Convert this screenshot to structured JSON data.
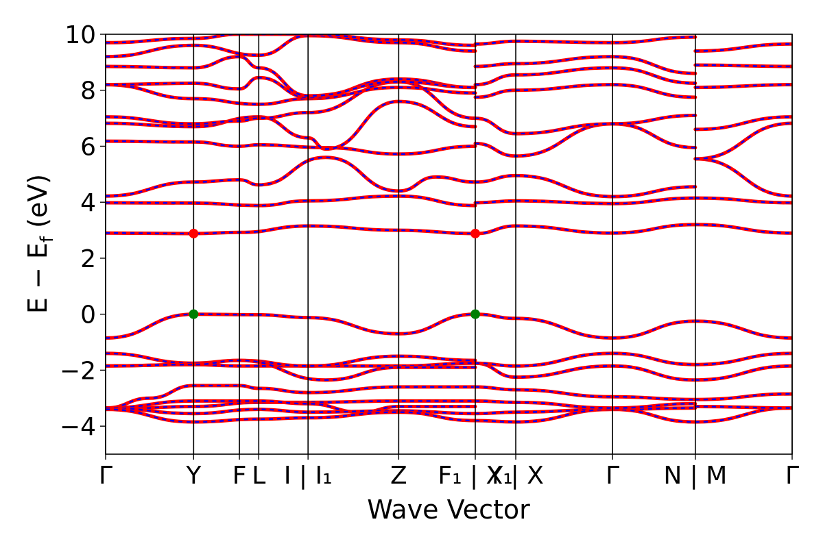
{
  "chart_data": {
    "type": "line",
    "title": "",
    "xlabel": "Wave Vector",
    "ylabel": "E − E_f (eV)",
    "ylabel_parts": {
      "main": "E − E",
      "sub": "f",
      "unit": " (eV)"
    },
    "ylim": [
      -5,
      10
    ],
    "y_ticks": [
      -4,
      -2,
      0,
      2,
      4,
      6,
      8,
      10
    ],
    "y_tick_labels": [
      "−4",
      "−2",
      "0",
      "2",
      "4",
      "6",
      "8",
      "10"
    ],
    "kpath": [
      {
        "label": "Γ",
        "x": 0.0
      },
      {
        "label": "Y",
        "x": 1.0
      },
      {
        "label": "F",
        "x": 1.52
      },
      {
        "label": "L",
        "x": 1.74
      },
      {
        "label": "I | I₁",
        "x": 2.3
      },
      {
        "label": "Z",
        "x": 3.33
      },
      {
        "label": "F₁ | X₁",
        "x": 4.2
      },
      {
        "label": "Y | X",
        "x": 4.66
      },
      {
        "label": "Γ",
        "x": 5.76
      },
      {
        "label": "N | M",
        "x": 6.7
      },
      {
        "label": "Γ",
        "x": 7.8
      }
    ],
    "path_breaks": [
      4.2,
      6.7
    ],
    "series_styles": [
      {
        "color": "#ff0000",
        "style": "solid"
      },
      {
        "color": "#0000ff",
        "style": "dashed"
      }
    ],
    "vbm": {
      "energy": 0.0,
      "x": [
        1.0,
        4.2
      ],
      "color": "#007f00"
    },
    "cbm": {
      "energy": 2.88,
      "x": [
        1.0,
        4.2
      ],
      "color": "#ff0000"
    },
    "bands": [
      [
        [
          0,
          -3.35
        ],
        [
          0.5,
          -3.0
        ],
        [
          1.0,
          -2.55
        ],
        [
          1.52,
          -2.55
        ],
        [
          1.74,
          -2.65
        ],
        [
          2.3,
          -2.8
        ],
        [
          3.33,
          -2.6
        ],
        [
          4.2,
          -2.6
        ]
      ],
      [
        [
          0,
          -3.4
        ],
        [
          1.0,
          -3.3
        ],
        [
          1.74,
          -3.15
        ],
        [
          2.3,
          -3.15
        ],
        [
          3.33,
          -3.1
        ],
        [
          4.2,
          -3.1
        ]
      ],
      [
        [
          0,
          -3.35
        ],
        [
          1.0,
          -3.1
        ],
        [
          1.74,
          -3.1
        ],
        [
          2.3,
          -3.2
        ],
        [
          2.9,
          -3.5
        ],
        [
          3.33,
          -3.3
        ],
        [
          4.2,
          -3.3
        ]
      ],
      [
        [
          0,
          -3.35
        ],
        [
          1.0,
          -3.55
        ],
        [
          1.74,
          -3.4
        ],
        [
          2.3,
          -3.5
        ],
        [
          3.33,
          -3.45
        ],
        [
          4.2,
          -3.55
        ]
      ],
      [
        [
          0,
          -3.4
        ],
        [
          1.0,
          -3.85
        ],
        [
          1.74,
          -3.75
        ],
        [
          2.3,
          -3.7
        ],
        [
          3.33,
          -3.5
        ],
        [
          4.2,
          -3.8
        ]
      ],
      [
        [
          0,
          -1.85
        ],
        [
          1.0,
          -1.8
        ],
        [
          1.52,
          -1.85
        ],
        [
          2.3,
          -1.85
        ],
        [
          3.33,
          -1.85
        ],
        [
          4.2,
          -1.75
        ]
      ],
      [
        [
          0,
          -1.4
        ],
        [
          1.0,
          -1.75
        ],
        [
          1.52,
          -1.65
        ],
        [
          2.3,
          -1.85
        ],
        [
          3.33,
          -1.5
        ],
        [
          4.2,
          -1.65
        ]
      ],
      [
        [
          0,
          -1.85
        ],
        [
          1.0,
          -1.8
        ],
        [
          1.52,
          -1.65
        ],
        [
          2.5,
          -2.35
        ],
        [
          3.33,
          -1.9
        ],
        [
          4.2,
          -1.9
        ]
      ],
      [
        [
          0,
          -0.85
        ],
        [
          1.0,
          0.0
        ],
        [
          1.74,
          -0.02
        ],
        [
          2.3,
          -0.12
        ],
        [
          3.33,
          -0.7
        ],
        [
          4.2,
          0.0
        ]
      ],
      [
        [
          0,
          2.9
        ],
        [
          1.0,
          2.88
        ],
        [
          1.52,
          2.92
        ],
        [
          2.3,
          3.15
        ],
        [
          3.33,
          3.0
        ],
        [
          4.2,
          2.88
        ]
      ],
      [
        [
          0,
          3.98
        ],
        [
          1.0,
          3.97
        ],
        [
          1.74,
          3.88
        ],
        [
          2.3,
          4.05
        ],
        [
          3.33,
          4.22
        ],
        [
          4.2,
          3.88
        ]
      ],
      [
        [
          0,
          4.22
        ],
        [
          1.0,
          4.72
        ],
        [
          1.52,
          4.8
        ],
        [
          1.74,
          4.62
        ],
        [
          2.5,
          5.6
        ],
        [
          3.33,
          4.4
        ],
        [
          3.75,
          4.9
        ],
        [
          4.2,
          4.72
        ]
      ],
      [
        [
          0,
          6.18
        ],
        [
          1.0,
          6.15
        ],
        [
          1.52,
          6.0
        ],
        [
          1.74,
          6.05
        ],
        [
          2.5,
          5.95
        ],
        [
          3.33,
          5.72
        ],
        [
          4.2,
          6.0
        ]
      ],
      [
        [
          0,
          6.82
        ],
        [
          1.0,
          6.7
        ],
        [
          1.74,
          7.05
        ],
        [
          2.3,
          6.3
        ],
        [
          2.5,
          5.9
        ],
        [
          3.33,
          7.6
        ],
        [
          4.2,
          6.7
        ]
      ],
      [
        [
          0,
          7.05
        ],
        [
          1.0,
          6.8
        ],
        [
          1.52,
          6.9
        ],
        [
          1.74,
          7.0
        ],
        [
          2.3,
          7.2
        ],
        [
          3.33,
          8.3
        ],
        [
          4.2,
          7.0
        ]
      ],
      [
        [
          0,
          8.2
        ],
        [
          1.0,
          7.7
        ],
        [
          1.74,
          7.5
        ],
        [
          2.3,
          7.7
        ],
        [
          3.33,
          8.1
        ],
        [
          4.2,
          7.9
        ]
      ],
      [
        [
          0,
          8.2
        ],
        [
          1.0,
          8.25
        ],
        [
          1.52,
          8.05
        ],
        [
          1.74,
          8.45
        ],
        [
          2.3,
          7.75
        ],
        [
          3.33,
          8.4
        ],
        [
          4.2,
          8.1
        ]
      ],
      [
        [
          0,
          8.85
        ],
        [
          1.0,
          8.8
        ],
        [
          1.52,
          9.2
        ],
        [
          1.74,
          8.8
        ],
        [
          2.3,
          7.8
        ],
        [
          3.33,
          8.3
        ],
        [
          4.2,
          8.1
        ]
      ],
      [
        [
          0,
          9.2
        ],
        [
          1.0,
          9.6
        ],
        [
          1.74,
          9.25
        ],
        [
          2.3,
          9.95
        ],
        [
          3.33,
          9.7
        ],
        [
          4.2,
          9.4
        ]
      ],
      [
        [
          0,
          9.7
        ],
        [
          1.0,
          9.85
        ],
        [
          1.52,
          10.0
        ],
        [
          2.3,
          10.0
        ],
        [
          3.33,
          9.8
        ],
        [
          4.2,
          9.6
        ]
      ],
      [
        [
          4.2,
          -3.55
        ],
        [
          4.66,
          -3.5
        ],
        [
          5.76,
          -3.4
        ],
        [
          6.7,
          -3.35
        ]
      ],
      [
        [
          4.2,
          -3.8
        ],
        [
          4.66,
          -3.85
        ],
        [
          5.76,
          -3.4
        ],
        [
          6.7,
          -3.85
        ]
      ],
      [
        [
          4.2,
          -3.1
        ],
        [
          4.66,
          -3.15
        ],
        [
          5.76,
          -3.35
        ],
        [
          6.7,
          -3.2
        ]
      ],
      [
        [
          4.2,
          -2.6
        ],
        [
          4.66,
          -2.7
        ],
        [
          5.76,
          -2.95
        ],
        [
          6.7,
          -3.05
        ]
      ],
      [
        [
          4.2,
          -1.75
        ],
        [
          4.66,
          -2.25
        ],
        [
          5.76,
          -1.85
        ],
        [
          6.7,
          -2.35
        ]
      ],
      [
        [
          4.2,
          -1.75
        ],
        [
          4.66,
          -1.85
        ],
        [
          5.76,
          -1.4
        ],
        [
          6.7,
          -1.8
        ]
      ],
      [
        [
          4.2,
          0.0
        ],
        [
          4.66,
          -0.15
        ],
        [
          5.76,
          -0.85
        ],
        [
          6.7,
          -0.25
        ]
      ],
      [
        [
          4.2,
          2.88
        ],
        [
          4.66,
          3.15
        ],
        [
          5.76,
          2.9
        ],
        [
          6.7,
          3.2
        ]
      ],
      [
        [
          4.2,
          3.98
        ],
        [
          4.66,
          4.05
        ],
        [
          5.76,
          3.95
        ],
        [
          6.7,
          4.15
        ]
      ],
      [
        [
          4.2,
          4.72
        ],
        [
          4.66,
          4.95
        ],
        [
          5.76,
          4.2
        ],
        [
          6.7,
          4.55
        ]
      ],
      [
        [
          4.2,
          6.1
        ],
        [
          4.66,
          5.65
        ],
        [
          5.76,
          6.8
        ],
        [
          6.7,
          5.95
        ]
      ],
      [
        [
          4.2,
          7.0
        ],
        [
          4.66,
          6.45
        ],
        [
          5.76,
          6.8
        ],
        [
          6.7,
          7.1
        ]
      ],
      [
        [
          4.2,
          7.75
        ],
        [
          4.66,
          8.0
        ],
        [
          5.76,
          8.2
        ],
        [
          6.7,
          7.75
        ]
      ],
      [
        [
          4.2,
          8.2
        ],
        [
          4.66,
          8.55
        ],
        [
          5.76,
          8.8
        ],
        [
          6.7,
          8.25
        ]
      ],
      [
        [
          4.2,
          8.85
        ],
        [
          4.66,
          8.95
        ],
        [
          5.76,
          9.2
        ],
        [
          6.7,
          8.6
        ]
      ],
      [
        [
          4.2,
          9.65
        ],
        [
          4.66,
          9.75
        ],
        [
          5.76,
          9.7
        ],
        [
          6.7,
          9.9
        ]
      ],
      [
        [
          6.7,
          -3.85
        ],
        [
          7.8,
          -3.35
        ]
      ],
      [
        [
          6.7,
          -3.3
        ],
        [
          7.8,
          -3.35
        ]
      ],
      [
        [
          6.7,
          -3.05
        ],
        [
          7.8,
          -2.85
        ]
      ],
      [
        [
          6.7,
          -2.35
        ],
        [
          7.8,
          -1.85
        ]
      ],
      [
        [
          6.7,
          -1.8
        ],
        [
          7.8,
          -1.4
        ]
      ],
      [
        [
          6.7,
          -0.25
        ],
        [
          7.8,
          -0.85
        ]
      ],
      [
        [
          6.7,
          3.2
        ],
        [
          7.8,
          2.9
        ]
      ],
      [
        [
          6.7,
          4.15
        ],
        [
          7.8,
          3.98
        ]
      ],
      [
        [
          6.7,
          5.55
        ],
        [
          7.8,
          4.22
        ]
      ],
      [
        [
          6.7,
          5.55
        ],
        [
          7.8,
          6.82
        ]
      ],
      [
        [
          6.7,
          6.6
        ],
        [
          7.8,
          7.05
        ]
      ],
      [
        [
          6.7,
          8.1
        ],
        [
          7.8,
          8.2
        ]
      ],
      [
        [
          6.7,
          8.9
        ],
        [
          7.8,
          8.85
        ]
      ],
      [
        [
          6.7,
          9.4
        ],
        [
          7.8,
          9.65
        ]
      ]
    ]
  }
}
